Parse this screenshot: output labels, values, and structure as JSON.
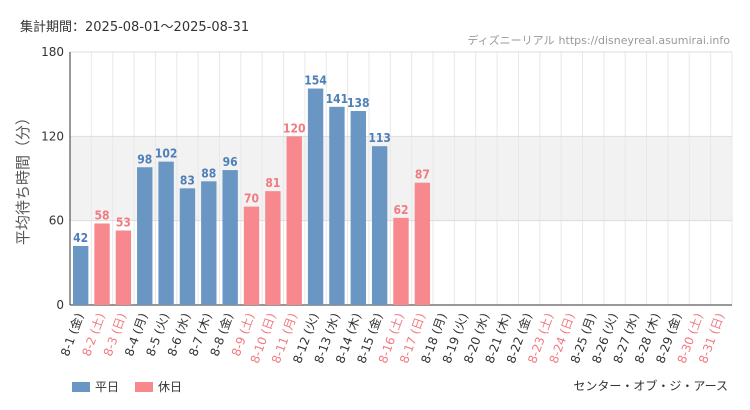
{
  "header": {
    "period_label": "集計期間：2025-08-01〜2025-08-31",
    "site_name": "ディズニーリアル",
    "site_url": "https://disneyreal.asumirai.info"
  },
  "footer": {
    "attraction": "センター・オブ・ジ・アース"
  },
  "colors": {
    "weekday": "#6a96c4",
    "holiday": "#f7888e",
    "weekday_text": "#4f7fb8",
    "holiday_text": "#f07b82"
  },
  "chart_data": {
    "type": "bar",
    "ylabel": "平均待ち時間（分）",
    "ylim": [
      0,
      180
    ],
    "yticks": [
      0,
      60,
      120,
      180
    ],
    "grid": true,
    "legend_position": "bottom-left",
    "legend": [
      {
        "name": "平日",
        "color": "#6a96c4"
      },
      {
        "name": "休日",
        "color": "#f7888e"
      }
    ],
    "categories": [
      "8-1 (金)",
      "8-2 (土)",
      "8-3 (日)",
      "8-4 (月)",
      "8-5 (火)",
      "8-6 (水)",
      "8-7 (木)",
      "8-8 (金)",
      "8-9 (土)",
      "8-10 (日)",
      "8-11 (月)",
      "8-12 (火)",
      "8-13 (水)",
      "8-14 (木)",
      "8-15 (金)",
      "8-16 (土)",
      "8-17 (日)",
      "8-18 (月)",
      "8-19 (火)",
      "8-20 (水)",
      "8-21 (木)",
      "8-22 (金)",
      "8-23 (土)",
      "8-24 (日)",
      "8-25 (月)",
      "8-26 (火)",
      "8-27 (水)",
      "8-28 (木)",
      "8-29 (金)",
      "8-30 (土)",
      "8-31 (日)"
    ],
    "values": [
      42,
      58,
      53,
      98,
      102,
      83,
      88,
      96,
      70,
      81,
      120,
      154,
      141,
      138,
      113,
      62,
      87,
      null,
      null,
      null,
      null,
      null,
      null,
      null,
      null,
      null,
      null,
      null,
      null,
      null,
      null
    ],
    "holiday": [
      false,
      true,
      true,
      false,
      false,
      false,
      false,
      false,
      true,
      true,
      true,
      false,
      false,
      false,
      false,
      true,
      true,
      false,
      false,
      false,
      false,
      false,
      true,
      true,
      false,
      false,
      false,
      false,
      false,
      true,
      true
    ]
  }
}
